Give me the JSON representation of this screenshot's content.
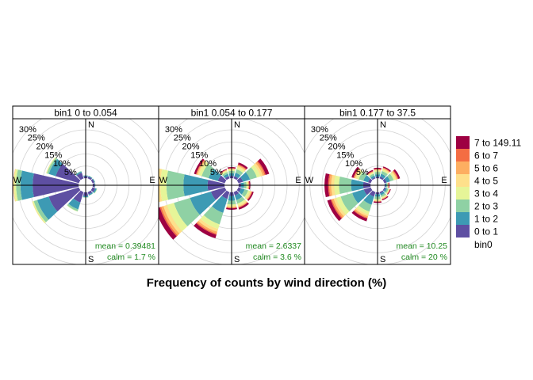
{
  "chart_data": {
    "type": "polar-stacked-bar",
    "title": "Frequency of counts by wind direction (%)",
    "legend_title": "bin0",
    "legend_position": "right",
    "bins": [
      "0 to 1",
      "1 to 2",
      "2 to 3",
      "3 to 4",
      "4 to 5",
      "5 to 6",
      "6 to 7",
      "7 to 149.11"
    ],
    "colors": [
      "#5e4fa2",
      "#3d9ab4",
      "#8fd1a4",
      "#e6f598",
      "#fee08b",
      "#fdae61",
      "#f46d43",
      "#9e0142"
    ],
    "ring_labels": [
      "5%",
      "10%",
      "15%",
      "20%",
      "25%",
      "30%"
    ],
    "directions": {
      "n": "N",
      "e": "E",
      "s": "S",
      "w": "W"
    },
    "panels": [
      {
        "title": "bin1 0 to 0.054",
        "mean_label": "mean =",
        "mean_value": "0.39481",
        "calm_label": "calm =",
        "calm_value": "1.7 %",
        "spokes": [
          {
            "angle": 90,
            "values": [
              0.8,
              0.2,
              0.1,
              0,
              0,
              0,
              0,
              0
            ]
          },
          {
            "angle": 120,
            "values": [
              1.2,
              0.6,
              0.2,
              0.1,
              0,
              0,
              0,
              0
            ]
          },
          {
            "angle": 150,
            "values": [
              1.0,
              0.5,
              0.1,
              0,
              0,
              0,
              0,
              0
            ]
          },
          {
            "angle": 180,
            "values": [
              1.5,
              0.5,
              0.2,
              0,
              0,
              0,
              0,
              0
            ]
          },
          {
            "angle": 210,
            "values": [
              4.5,
              3.0,
              0.8,
              0.2,
              0,
              0,
              0,
              0
            ]
          },
          {
            "angle": 240,
            "values": [
              13,
              5,
              1.5,
              0.5,
              0.2,
              0,
              0,
              0
            ]
          },
          {
            "angle": 270,
            "values": [
              19,
              5,
              1.8,
              0.8,
              0.3,
              0.1,
              0,
              0
            ]
          },
          {
            "angle": 300,
            "values": [
              10,
              3,
              0.8,
              0.3,
              0.1,
              0,
              0,
              0
            ]
          },
          {
            "angle": 330,
            "values": [
              2.5,
              0.5,
              0.2,
              0,
              0,
              0,
              0,
              0
            ]
          },
          {
            "angle": 360,
            "values": [
              0.8,
              0.3,
              0.1,
              0,
              0,
              0,
              0,
              0
            ]
          },
          {
            "angle": 30,
            "values": [
              0.8,
              0.3,
              0.1,
              0,
              0,
              0,
              0,
              0
            ]
          },
          {
            "angle": 60,
            "values": [
              0.8,
              0.3,
              0.1,
              0,
              0,
              0,
              0,
              0
            ]
          }
        ]
      },
      {
        "title": "bin1 0.054 to 0.177",
        "mean_label": "mean =",
        "mean_value": "2.6337",
        "calm_label": "calm =",
        "calm_value": "3.6 %",
        "spokes": [
          {
            "angle": 30,
            "values": [
              1.0,
              1.5,
              1.5,
              0.8,
              0.6,
              0.4,
              0.3,
              0.8
            ]
          },
          {
            "angle": 60,
            "values": [
              2.0,
              3.0,
              3.0,
              1.5,
              1.0,
              0.8,
              0.5,
              1.5
            ]
          },
          {
            "angle": 90,
            "values": [
              1.0,
              1.2,
              1.0,
              0.5,
              0.3,
              0.2,
              0.2,
              0.4
            ]
          },
          {
            "angle": 120,
            "values": [
              1.2,
              1.5,
              1.5,
              0.8,
              0.5,
              0.3,
              0.2,
              0.6
            ]
          },
          {
            "angle": 150,
            "values": [
              1.5,
              2.0,
              1.5,
              0.8,
              0.5,
              0.3,
              0.2,
              0.8
            ]
          },
          {
            "angle": 180,
            "values": [
              1.5,
              2.0,
              1.5,
              0.7,
              0.4,
              0.3,
              0.2,
              0.6
            ]
          },
          {
            "angle": 210,
            "values": [
              3,
              6,
              5,
              2,
              1.2,
              0.8,
              0.5,
              1.5
            ]
          },
          {
            "angle": 240,
            "values": [
              6,
              9,
              7,
              3,
              1.5,
              1.0,
              0.6,
              2
            ]
          },
          {
            "angle": 270,
            "values": [
              7,
              10,
              7,
              2.5,
              1.5,
              1.0,
              0.6,
              2
            ]
          },
          {
            "angle": 300,
            "values": [
              3,
              4,
              3,
              1.2,
              0.6,
              0.4,
              0.3,
              0.8
            ]
          },
          {
            "angle": 330,
            "values": [
              1.0,
              1.0,
              0.8,
              0.4,
              0.3,
              0.2,
              0.1,
              0.3
            ]
          },
          {
            "angle": 360,
            "values": [
              1.0,
              1.0,
              1.0,
              0.5,
              0.3,
              0.2,
              0.1,
              0.5
            ]
          }
        ]
      },
      {
        "title": "bin1 0.177 to 37.5",
        "mean_label": "mean =",
        "mean_value": "10.25",
        "calm_label": "calm =",
        "calm_value": "20 %",
        "spokes": [
          {
            "angle": 30,
            "values": [
              0.8,
              1.2,
              1.2,
              0.6,
              0.4,
              0.3,
              0.2,
              0.5
            ]
          },
          {
            "angle": 60,
            "values": [
              1.0,
              1.5,
              1.5,
              0.8,
              0.5,
              0.4,
              0.3,
              0.8
            ]
          },
          {
            "angle": 90,
            "values": [
              0.3,
              0.5,
              0.4,
              0.2,
              0.1,
              0.1,
              0.1,
              0.3
            ]
          },
          {
            "angle": 120,
            "values": [
              0.5,
              0.7,
              0.6,
              0.3,
              0.2,
              0.1,
              0.1,
              0.3
            ]
          },
          {
            "angle": 150,
            "values": [
              0.6,
              0.8,
              0.8,
              0.4,
              0.3,
              0.2,
              0.1,
              0.4
            ]
          },
          {
            "angle": 180,
            "values": [
              0.8,
              1.0,
              1.0,
              0.5,
              0.3,
              0.2,
              0.1,
              0.5
            ]
          },
          {
            "angle": 210,
            "values": [
              2,
              3.5,
              3,
              1.2,
              0.8,
              0.6,
              0.4,
              1.2
            ]
          },
          {
            "angle": 240,
            "values": [
              3,
              5,
              5,
              2,
              1.0,
              0.8,
              0.5,
              1.5
            ]
          },
          {
            "angle": 270,
            "values": [
              3,
              5,
              5,
              2,
              1.2,
              0.8,
              0.5,
              1.5
            ]
          },
          {
            "angle": 300,
            "values": [
              1.2,
              2.0,
              2.0,
              1.0,
              0.6,
              0.4,
              0.3,
              0.8
            ]
          },
          {
            "angle": 330,
            "values": [
              0.5,
              0.8,
              0.8,
              0.4,
              0.3,
              0.2,
              0.2,
              0.5
            ]
          },
          {
            "angle": 360,
            "values": [
              0.6,
              1.0,
              1.0,
              0.5,
              0.3,
              0.2,
              0.2,
              0.5
            ]
          }
        ]
      }
    ]
  }
}
